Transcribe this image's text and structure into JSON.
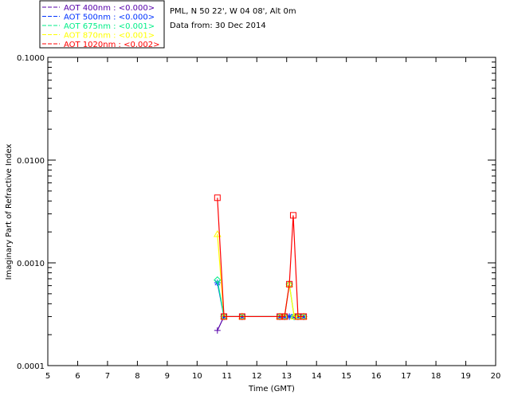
{
  "chart_data": {
    "type": "line",
    "title_lines": [
      "PML, N 50 22', W 04 08', Alt 0m",
      "Data from: 30 Dec 2014"
    ],
    "xlabel": "Time (GMT)",
    "ylabel": "Imaginary Part of Refractive Index",
    "xlim": [
      5,
      20
    ],
    "ylim": [
      0.0001,
      0.1
    ],
    "yscale": "log",
    "xticks": [
      "5",
      "6",
      "7",
      "8",
      "9",
      "10",
      "11",
      "12",
      "13",
      "14",
      "15",
      "16",
      "17",
      "18",
      "19",
      "20"
    ],
    "yticks": [
      "0.0001",
      "0.0010",
      "0.0100",
      "0.1000"
    ],
    "legend_position": "top-left-outside",
    "series": [
      {
        "name": "AOT  400nm : <0.000>",
        "color": "#5500aa",
        "marker": "plus",
        "points": [
          [
            10.68,
            0.00022
          ],
          [
            10.9,
            0.0003
          ],
          [
            11.51,
            0.0003
          ],
          [
            12.77,
            0.0003
          ],
          [
            12.93,
            0.0003
          ],
          [
            13.09,
            0.0003
          ],
          [
            13.25,
            0.0003
          ],
          [
            13.38,
            0.0003
          ],
          [
            13.57,
            0.0003
          ]
        ]
      },
      {
        "name": "AOT  500nm : <0.000>",
        "color": "#0033ff",
        "marker": "asterisk",
        "points": [
          [
            10.68,
            0.00064
          ],
          [
            10.9,
            0.0003
          ],
          [
            11.51,
            0.0003
          ],
          [
            12.77,
            0.0003
          ],
          [
            12.93,
            0.0003
          ],
          [
            13.09,
            0.0003
          ],
          [
            13.25,
            0.0003
          ],
          [
            13.38,
            0.0003
          ],
          [
            13.57,
            0.0003
          ]
        ]
      },
      {
        "name": "AOT  675nm : <0.001>",
        "color": "#00ee88",
        "marker": "diamond",
        "points": [
          [
            10.68,
            0.00068
          ],
          [
            10.9,
            0.0003
          ],
          [
            11.51,
            0.0003
          ],
          [
            12.77,
            0.0003
          ],
          [
            12.93,
            0.0003
          ],
          [
            13.09,
            0.00062
          ],
          [
            13.25,
            0.0003
          ],
          [
            13.38,
            0.0003
          ],
          [
            13.57,
            0.0003
          ]
        ]
      },
      {
        "name": "AOT  870nm : <0.001>",
        "color": "#ffff00",
        "marker": "triangle",
        "points": [
          [
            10.68,
            0.0019
          ],
          [
            10.9,
            0.0003
          ],
          [
            11.51,
            0.0003
          ],
          [
            12.77,
            0.0003
          ],
          [
            12.93,
            0.0003
          ],
          [
            13.09,
            0.00062
          ],
          [
            13.25,
            0.0003
          ],
          [
            13.38,
            0.0003
          ],
          [
            13.57,
            0.0003
          ]
        ]
      },
      {
        "name": "AOT 1020nm : <0.002>",
        "color": "#ff0000",
        "marker": "square",
        "points": [
          [
            10.68,
            0.0043
          ],
          [
            10.9,
            0.0003
          ],
          [
            11.51,
            0.0003
          ],
          [
            12.77,
            0.0003
          ],
          [
            12.93,
            0.0003
          ],
          [
            13.09,
            0.00062
          ],
          [
            13.22,
            0.0029
          ],
          [
            13.38,
            0.0003
          ],
          [
            13.57,
            0.0003
          ]
        ]
      }
    ]
  }
}
